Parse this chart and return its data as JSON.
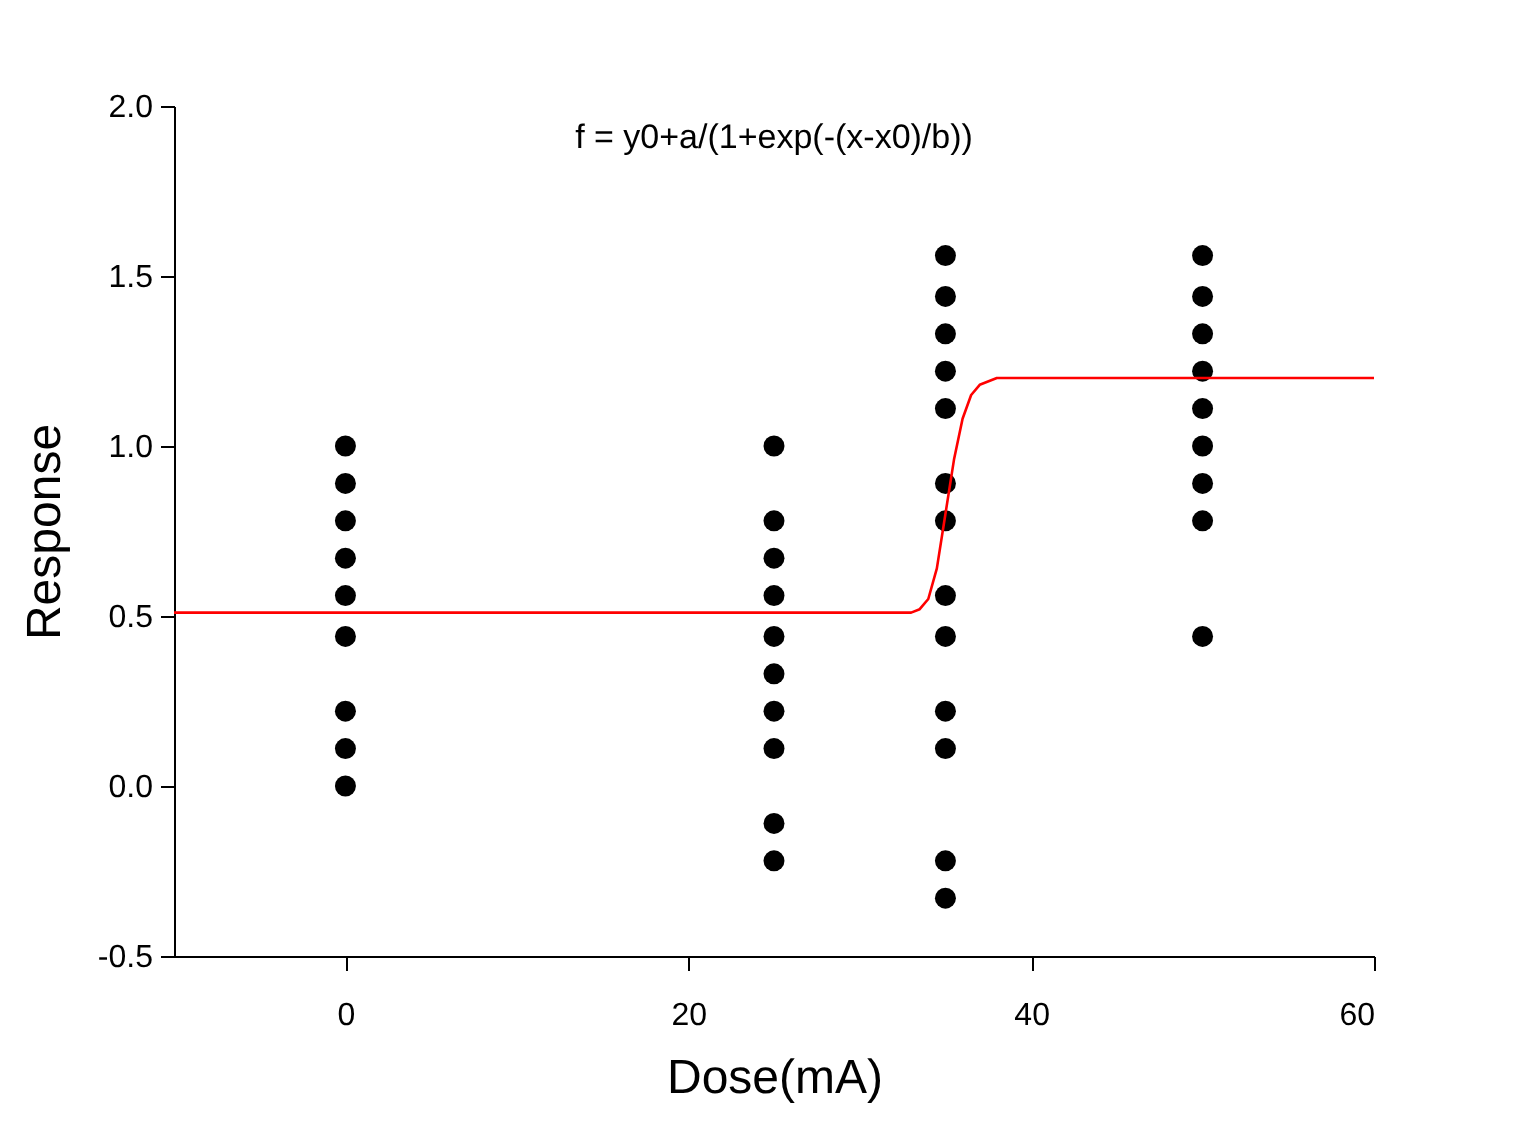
{
  "chart_data": {
    "type": "scatter",
    "xlabel": "Dose(mA)",
    "ylabel": "Response",
    "annotations": [
      "f = y0+a/(1+exp(-(x-x0)/b))"
    ],
    "xlim": [
      -10,
      60
    ],
    "xticks": [
      0,
      20,
      40,
      60
    ],
    "ylim": [
      -0.5,
      2.0
    ],
    "yticks": [
      {
        "value": -0.5,
        "label": "-0.5"
      },
      {
        "value": 0,
        "label": "0.0"
      },
      {
        "value": 0.5,
        "label": "0.5"
      },
      {
        "value": 1.0,
        "label": "1.0"
      },
      {
        "value": 1.5,
        "label": "1.5"
      },
      {
        "value": 2.0,
        "label": "2.0"
      }
    ],
    "grid": false,
    "marker": "circle",
    "series": [
      {
        "color": "#000000",
        "x": [
          0,
          0,
          0,
          0,
          0,
          0,
          0,
          0,
          0,
          25,
          25,
          25,
          25,
          25,
          25,
          25,
          25,
          25,
          25,
          35,
          35,
          35,
          35,
          35,
          35,
          35,
          35,
          35,
          35,
          35,
          35,
          35,
          50,
          50,
          50,
          50,
          50,
          50,
          50,
          50,
          50
        ],
        "values": [
          1.0,
          0.89,
          0.78,
          0.67,
          0.56,
          0.44,
          0.22,
          0.11,
          0.0,
          1.0,
          0.78,
          0.67,
          0.56,
          0.44,
          0.33,
          0.22,
          0.11,
          -0.11,
          -0.22,
          1.56,
          1.44,
          1.33,
          1.22,
          1.11,
          0.89,
          0.78,
          0.56,
          0.44,
          0.22,
          0.11,
          -0.22,
          -0.33,
          1.56,
          1.44,
          1.33,
          1.22,
          1.11,
          1.0,
          0.89,
          0.78,
          0.44
        ]
      },
      {
        "type": "line",
        "color": "#ff0000",
        "line_style": "solid",
        "marker": "none",
        "x": [
          -10,
          33,
          33.5,
          34,
          34.5,
          35,
          35.5,
          36,
          36.5,
          37,
          38,
          60
        ],
        "values": [
          0.51,
          0.51,
          0.52,
          0.55,
          0.64,
          0.8,
          0.96,
          1.08,
          1.15,
          1.18,
          1.2,
          1.2
        ]
      }
    ]
  }
}
